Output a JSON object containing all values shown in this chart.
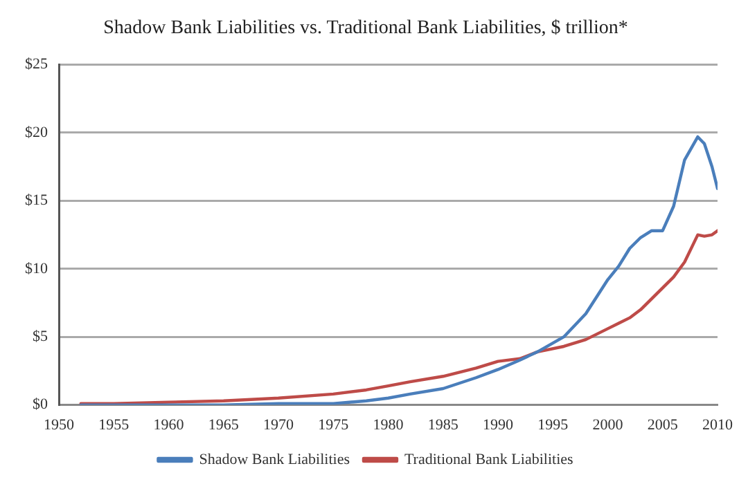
{
  "chart_data": {
    "type": "line",
    "title": "Shadow Bank Liabilities vs. Traditional Bank Liabilities, $ trillion*",
    "x": [
      1952,
      1955,
      1960,
      1965,
      1970,
      1975,
      1978,
      1980,
      1982,
      1985,
      1988,
      1990,
      1992,
      1993.6,
      1996,
      1998,
      2000,
      2001,
      2002,
      2003,
      2004,
      2005,
      2006,
      2007,
      2008.2,
      2008.8,
      2009.5,
      2010
    ],
    "series": [
      {
        "name": "Shadow Bank Liabilities",
        "color": "#4a7ebb",
        "values": [
          0,
          0,
          0,
          0,
          0.1,
          0.1,
          0.3,
          0.5,
          0.8,
          1.2,
          2.0,
          2.6,
          3.3,
          3.9,
          5.0,
          6.7,
          9.2,
          10.2,
          11.5,
          12.3,
          12.8,
          12.8,
          14.6,
          18.0,
          19.7,
          19.2,
          17.5,
          15.9
        ]
      },
      {
        "name": "Traditional Bank Liabilities",
        "color": "#be4b48",
        "values": [
          0.1,
          0.1,
          0.2,
          0.3,
          0.5,
          0.8,
          1.1,
          1.4,
          1.7,
          2.1,
          2.7,
          3.2,
          3.4,
          3.9,
          4.3,
          4.8,
          5.6,
          6.0,
          6.4,
          7.0,
          7.8,
          8.6,
          9.4,
          10.5,
          12.5,
          12.4,
          12.5,
          12.8
        ]
      }
    ],
    "xlim": [
      1950,
      2010
    ],
    "xticks": [
      1950,
      1955,
      1960,
      1965,
      1970,
      1975,
      1980,
      1985,
      1990,
      1995,
      2000,
      2005,
      2010
    ],
    "ylim": [
      0,
      25
    ],
    "yticks": [
      {
        "value": 0,
        "label": "$0"
      },
      {
        "value": 5,
        "label": "$5"
      },
      {
        "value": 10,
        "label": "$10"
      },
      {
        "value": 15,
        "label": "$15"
      },
      {
        "value": 20,
        "label": "$20"
      },
      {
        "value": 25,
        "label": "$25"
      }
    ],
    "grid": "y",
    "legend": "bottom",
    "marker": "none",
    "line_style": "solid"
  }
}
